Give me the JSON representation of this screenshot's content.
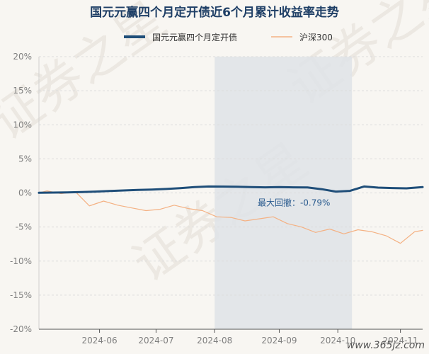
{
  "watermark": "证券之星",
  "site_mark": "www.365jz.com",
  "chart_data": {
    "type": "line",
    "title": "国元元赢四个月定开债近6个月累计收益率走势",
    "xlabel": "",
    "ylabel": "",
    "ylim": [
      -20,
      20
    ],
    "yticks": [
      "20%",
      "15%",
      "10%",
      "5%",
      "0%",
      "-5%",
      "-10%",
      "-15%",
      "-20%"
    ],
    "ytick_values": [
      20,
      15,
      10,
      5,
      0,
      -5,
      -10,
      -15,
      -20
    ],
    "xlim": [
      "2024-05-06",
      "2024-11-12"
    ],
    "xticks": [
      {
        "date": "2024-06-05",
        "label": "2024-06"
      },
      {
        "date": "2024-07-03",
        "label": "2024-07"
      },
      {
        "date": "2024-08-01",
        "label": "2024-08"
      },
      {
        "date": "2024-09-02",
        "label": "2024-09"
      },
      {
        "date": "2024-10-01",
        "label": "2024-10"
      },
      {
        "date": "2024-11-01",
        "label": "2024-11"
      }
    ],
    "grid": true,
    "legend_position": "top-center",
    "series": [
      {
        "name": "国元元赢四个月定开债",
        "color": "#1f4e79",
        "x": [
          "2024-05-06",
          "2024-05-13",
          "2024-05-20",
          "2024-05-27",
          "2024-06-03",
          "2024-06-10",
          "2024-06-17",
          "2024-06-24",
          "2024-07-01",
          "2024-07-08",
          "2024-07-15",
          "2024-07-22",
          "2024-07-29",
          "2024-08-05",
          "2024-08-12",
          "2024-08-19",
          "2024-08-26",
          "2024-09-02",
          "2024-09-09",
          "2024-09-16",
          "2024-09-23",
          "2024-09-30",
          "2024-10-07",
          "2024-10-14",
          "2024-10-21",
          "2024-10-28",
          "2024-11-04",
          "2024-11-12"
        ],
        "y": [
          0.02,
          0.05,
          0.08,
          0.12,
          0.2,
          0.28,
          0.36,
          0.45,
          0.5,
          0.58,
          0.7,
          0.85,
          0.95,
          0.93,
          0.9,
          0.85,
          0.82,
          0.85,
          0.82,
          0.8,
          0.55,
          0.2,
          0.3,
          0.95,
          0.78,
          0.72,
          0.68,
          0.86
        ]
      },
      {
        "name": "沪深300",
        "color": "#f4b183",
        "x": [
          "2024-05-06",
          "2024-05-10",
          "2024-05-17",
          "2024-05-24",
          "2024-05-31",
          "2024-06-07",
          "2024-06-14",
          "2024-06-21",
          "2024-06-28",
          "2024-07-05",
          "2024-07-12",
          "2024-07-19",
          "2024-07-26",
          "2024-08-02",
          "2024-08-09",
          "2024-08-16",
          "2024-08-23",
          "2024-08-30",
          "2024-09-06",
          "2024-09-13",
          "2024-09-20",
          "2024-09-27",
          "2024-10-04",
          "2024-10-11",
          "2024-10-18",
          "2024-10-25",
          "2024-11-01",
          "2024-11-08",
          "2024-11-12"
        ],
        "y": [
          0.0,
          0.3,
          -0.1,
          0.2,
          -1.9,
          -1.2,
          -1.8,
          -2.2,
          -2.6,
          -2.4,
          -1.8,
          -2.3,
          -2.6,
          -3.5,
          -3.6,
          -4.1,
          -3.8,
          -3.5,
          -4.5,
          -5.0,
          -5.8,
          -5.3,
          -6.0,
          -5.4,
          -5.7,
          -6.3,
          -7.4,
          -5.7,
          -5.5
        ]
      }
    ],
    "highlight": {
      "start": "2024-08-01",
      "end": "2024-10-08",
      "label": "最大回撤：-0.79%"
    }
  }
}
